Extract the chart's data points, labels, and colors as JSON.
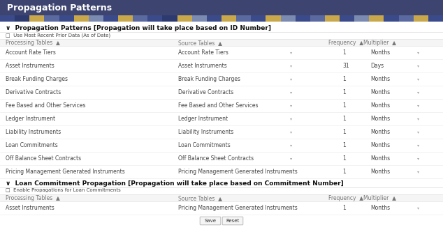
{
  "title": "Propagation Patterns",
  "header_bg": "#3d4470",
  "header_text_color": "#ffffff",
  "header_font_size": 9,
  "section1_label": "∨  Propagation Patterns [Propagation will take place based on ID Number]",
  "checkbox1_label": "□  Use Most Recent Prior Data (As of Date)",
  "section2_label": "∨  Loan Commitment Propagation [Propagation will take place based on Commitment Number]",
  "checkbox2_label": "□  Enable Propagations for Loan Commitments",
  "col_headers": [
    "Processing Tables  ▲",
    "Source Tables  ▲",
    "Frequency  ▲",
    "Multiplier  ▲"
  ],
  "table1_rows": [
    [
      "Account Rate Tiers",
      "Account Rate Tiers",
      "1",
      "Months"
    ],
    [
      "Asset Instruments",
      "Asset Instruments",
      "31",
      "Days"
    ],
    [
      "Break Funding Charges",
      "Break Funding Charges",
      "1",
      "Months"
    ],
    [
      "Derivative Contracts",
      "Derivative Contracts",
      "1",
      "Months"
    ],
    [
      "Fee Based and Other Services",
      "Fee Based and Other Services",
      "1",
      "Months"
    ],
    [
      "Ledger Instrument",
      "Ledger Instrument",
      "1",
      "Months"
    ],
    [
      "Liability Instruments",
      "Liability Instruments",
      "1",
      "Months"
    ],
    [
      "Loan Commitments",
      "Loan Commitments",
      "1",
      "Months"
    ],
    [
      "Off Balance Sheet Contracts",
      "Off Balance Sheet Contracts",
      "1",
      "Months"
    ],
    [
      "Pricing Management Generated Instruments",
      "Pricing Management Generated Instruments",
      "1",
      "Months"
    ]
  ],
  "table2_rows": [
    [
      "Asset Instruments",
      "Pricing Management Generated Instruments",
      "1",
      "Months"
    ]
  ],
  "bg_color": "#ffffff",
  "table_bg": "#ffffff",
  "row_line_color": "#e8e8e8",
  "text_color": "#444444",
  "section_text_color": "#111111",
  "col_header_color": "#777777",
  "button_save": "Save",
  "button_reset": "Reset",
  "button_bg": "#f5f5f5",
  "button_border": "#bbbbbb",
  "dropdown_arrow": "▾",
  "font_size": 5.5,
  "col_header_font_size": 5.5,
  "stripe_pattern": [
    "#3a4a8a",
    "#2d3a70",
    "#c8a84b",
    "#5a6aa0",
    "#3a4a8a",
    "#c8a84b",
    "#7a8ab0",
    "#3a4a8a",
    "#c8a84b",
    "#5a6aa0",
    "#3a4a8a",
    "#2d3a70",
    "#c8a84b",
    "#7a8ab0",
    "#3a4a8a",
    "#c8a84b",
    "#5a6aa0",
    "#3a4a8a",
    "#c8a84b",
    "#7a8ab0",
    "#3a4a8a",
    "#5a6aa0",
    "#c8a84b",
    "#3a4a8a",
    "#7a8ab0",
    "#c8a84b",
    "#3a4a8a",
    "#5a6aa0",
    "#c8a84b",
    "#3a4a8a"
  ]
}
